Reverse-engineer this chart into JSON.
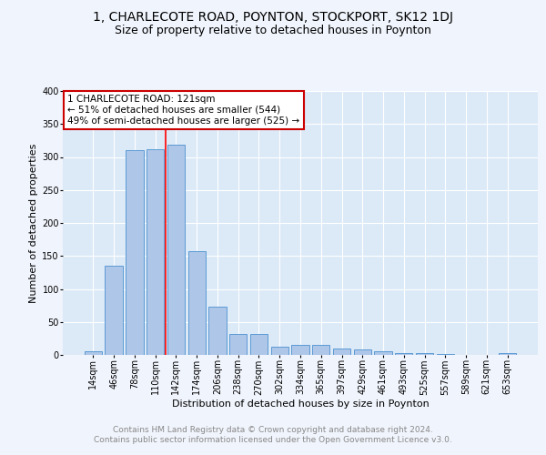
{
  "title": "1, CHARLECOTE ROAD, POYNTON, STOCKPORT, SK12 1DJ",
  "subtitle": "Size of property relative to detached houses in Poynton",
  "xlabel": "Distribution of detached houses by size in Poynton",
  "ylabel": "Number of detached properties",
  "categories": [
    "14sqm",
    "46sqm",
    "78sqm",
    "110sqm",
    "142sqm",
    "174sqm",
    "206sqm",
    "238sqm",
    "270sqm",
    "302sqm",
    "334sqm",
    "365sqm",
    "397sqm",
    "429sqm",
    "461sqm",
    "493sqm",
    "525sqm",
    "557sqm",
    "589sqm",
    "621sqm",
    "653sqm"
  ],
  "values": [
    5,
    135,
    310,
    312,
    318,
    157,
    73,
    32,
    32,
    13,
    15,
    15,
    10,
    8,
    5,
    3,
    3,
    2,
    0,
    0,
    3
  ],
  "bar_color": "#aec6e8",
  "bar_edge_color": "#5b9bd5",
  "background_color": "#dce9f7",
  "grid_color": "#ffffff",
  "annotation_box_text": "1 CHARLECOTE ROAD: 121sqm\n← 51% of detached houses are smaller (544)\n49% of semi-detached houses are larger (525) →",
  "annotation_box_color": "#ffffff",
  "annotation_box_edge_color": "#cc0000",
  "red_line_x": 3.5,
  "footer": "Contains HM Land Registry data © Crown copyright and database right 2024.\nContains public sector information licensed under the Open Government Licence v3.0.",
  "ylim": [
    0,
    400
  ],
  "yticks": [
    0,
    50,
    100,
    150,
    200,
    250,
    300,
    350,
    400
  ],
  "title_fontsize": 10,
  "subtitle_fontsize": 9,
  "axis_label_fontsize": 8,
  "tick_fontsize": 7,
  "annotation_fontsize": 7.5,
  "footer_fontsize": 6.5,
  "fig_bg": "#f0f4fc"
}
